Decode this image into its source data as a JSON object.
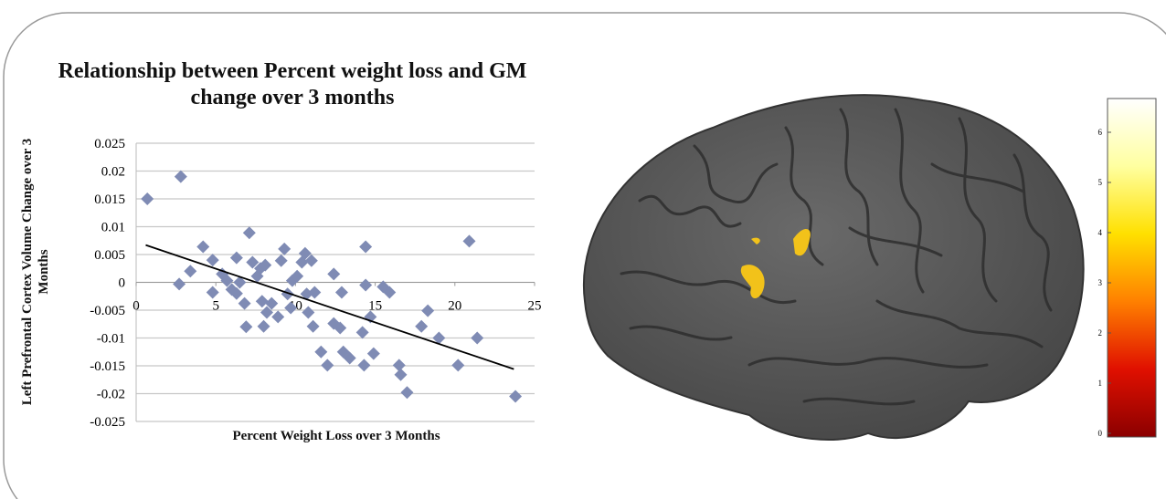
{
  "chart_data": [
    {
      "type": "scatter",
      "title": "Relationship between Percent weight loss and GM change over 3 months",
      "x_label": "Percent Weight Loss over 3 Months",
      "y_label": "Left Prefrontal Cortex Volume Change over 3 Months",
      "color": "#7f8bb4",
      "xlim": [
        0,
        25
      ],
      "xticks": [
        0,
        5,
        10,
        15,
        20,
        25
      ],
      "ylim": [
        -0.025,
        0.025
      ],
      "yticks": [
        -0.025,
        -0.02,
        -0.015,
        -0.01,
        -0.005,
        0,
        0.005,
        0.01,
        0.015,
        0.02,
        0.025
      ],
      "grid": true,
      "x": [
        0.7,
        2.8,
        2.7,
        3.4,
        4.2,
        4.8,
        4.8,
        5.4,
        5.7,
        6.0,
        6.3,
        6.3,
        6.5,
        6.8,
        7.1,
        6.9,
        7.3,
        7.6,
        7.8,
        7.9,
        8.1,
        8.0,
        8.2,
        8.5,
        8.9,
        9.1,
        9.3,
        9.5,
        9.7,
        9.8,
        10.1,
        10.4,
        10.6,
        10.7,
        10.8,
        11.0,
        11.1,
        11.2,
        11.6,
        12.0,
        12.4,
        12.4,
        12.9,
        12.8,
        13.0,
        13.4,
        14.2,
        14.3,
        14.4,
        14.4,
        14.7,
        14.9,
        15.5,
        15.9,
        16.5,
        16.6,
        17.0,
        17.9,
        18.3,
        19.0,
        20.2,
        20.9,
        21.4,
        23.8
      ],
      "values": [
        0.015,
        0.019,
        -0.0003,
        0.002,
        0.0064,
        0.004,
        -0.0018,
        0.0015,
        0.0003,
        -0.0013,
        0.0044,
        -0.002,
        0,
        -0.0038,
        0.0089,
        -0.008,
        0.0036,
        0.0011,
        0.0025,
        -0.0034,
        0.0031,
        -0.0079,
        -0.0054,
        -0.0038,
        -0.0062,
        0.0039,
        0.006,
        -0.0021,
        -0.0046,
        0.0003,
        0.0011,
        0.0036,
        0.0052,
        -0.0021,
        -0.0054,
        0.0039,
        -0.0079,
        -0.0018,
        -0.0125,
        -0.0149,
        0.0015,
        -0.0074,
        -0.0018,
        -0.0082,
        -0.0125,
        -0.0136,
        -0.009,
        -0.0149,
        0.0064,
        -0.0005,
        -0.0062,
        -0.0128,
        -0.0008,
        -0.0018,
        -0.0149,
        -0.0166,
        -0.0198,
        -0.0079,
        -0.0051,
        -0.01,
        -0.0149,
        0.0074,
        -0.01,
        -0.0205
      ],
      "trendline": {
        "x": [
          0.6,
          23.7
        ],
        "y": [
          0.0067,
          -0.0156
        ],
        "color": "#000000"
      }
    },
    {
      "type": "colorbar",
      "ylim": [
        0,
        6.6
      ],
      "yticks": [
        0,
        1,
        2,
        3,
        4,
        5,
        6
      ],
      "colors": [
        "#8b0000",
        "#e01000",
        "#ff8000",
        "#ffe000",
        "#ffffa0",
        "#ffffff"
      ]
    }
  ]
}
